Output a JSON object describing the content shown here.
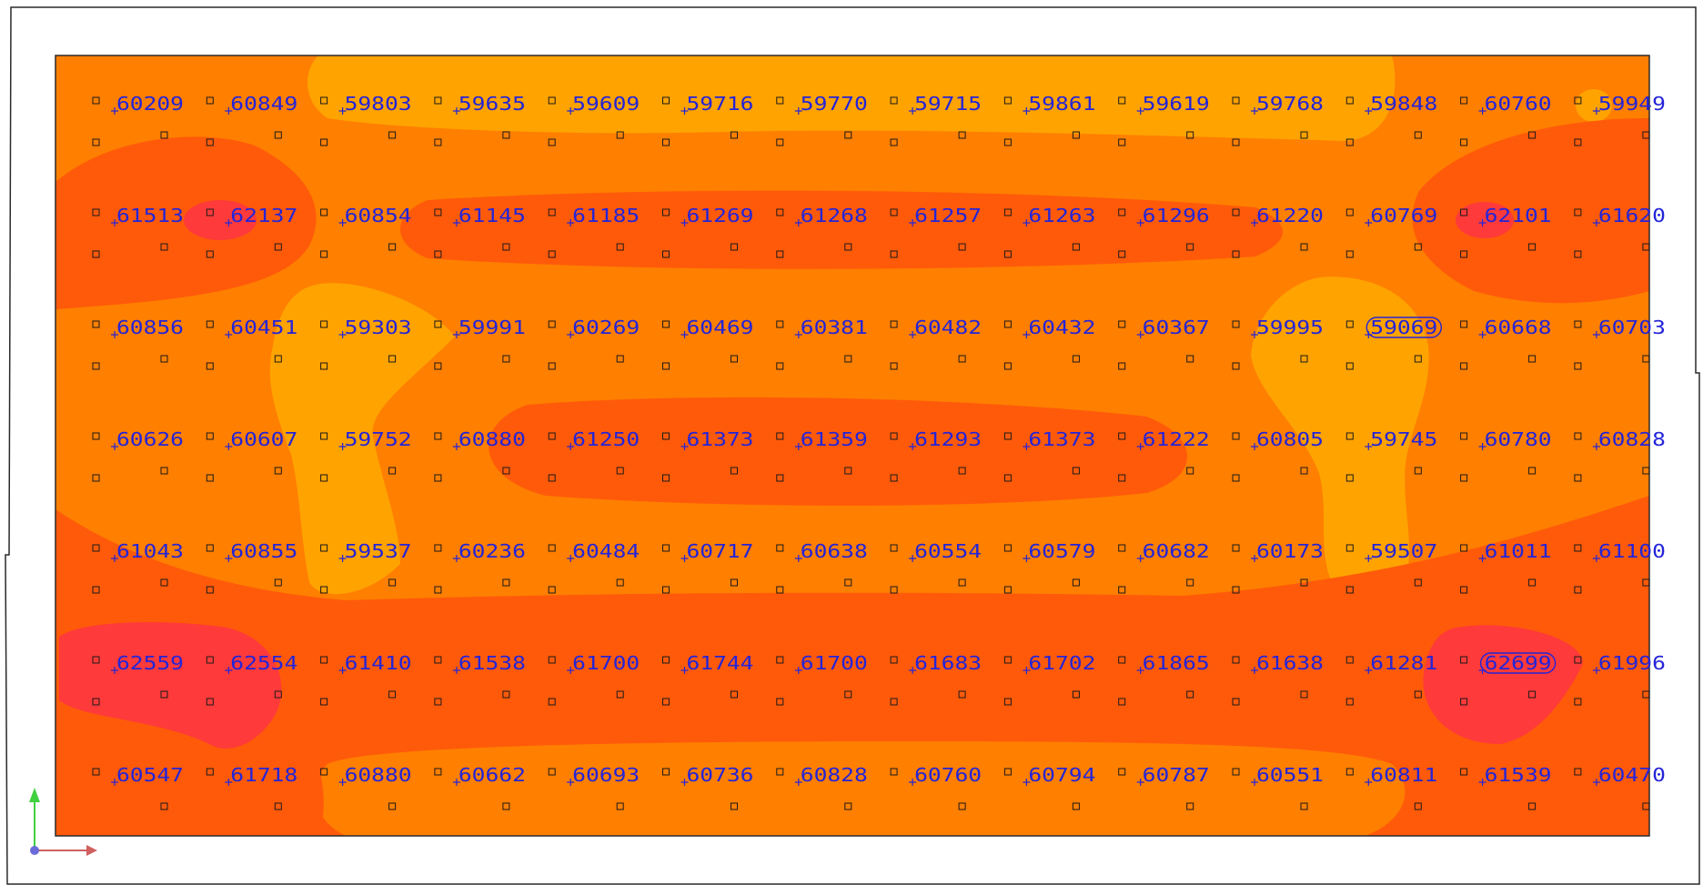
{
  "colors": {
    "background": "#ffffff",
    "frame": "#2a2a2a",
    "band_low": "#ffa300",
    "band_mid": "#ff7f00",
    "band_high": "#ff5a0a",
    "band_peak": "#ff3a3a",
    "label": "#2424d8",
    "marker": "#1a1a1a",
    "axis_x": "#d06060",
    "axis_y": "#40d040",
    "origin": "#6a6ad8"
  },
  "grid": {
    "rows": [
      [
        "60209",
        "60849",
        "59803",
        "59635",
        "59609",
        "59716",
        "59770",
        "59715",
        "59861",
        "59619",
        "59768",
        "59848",
        "60760",
        "59949"
      ],
      [
        "61513",
        "62137",
        "60854",
        "61145",
        "61185",
        "61269",
        "61268",
        "61257",
        "61263",
        "61296",
        "61220",
        "60769",
        "62101",
        "61620"
      ],
      [
        "60856",
        "60451",
        "59303",
        "59991",
        "60269",
        "60469",
        "60381",
        "60482",
        "60432",
        "60367",
        "59995",
        "59069",
        "60668",
        "60703"
      ],
      [
        "60626",
        "60607",
        "59752",
        "60880",
        "61250",
        "61373",
        "61359",
        "61293",
        "61373",
        "61222",
        "60805",
        "59745",
        "60780",
        "60828"
      ],
      [
        "61043",
        "60855",
        "59537",
        "60236",
        "60484",
        "60717",
        "60638",
        "60554",
        "60579",
        "60682",
        "60173",
        "59507",
        "61011",
        "61100"
      ],
      [
        "62559",
        "62554",
        "61410",
        "61538",
        "61700",
        "61744",
        "61700",
        "61683",
        "61702",
        "61865",
        "61638",
        "61281",
        "62699",
        "61996"
      ],
      [
        "60547",
        "61718",
        "60880",
        "60662",
        "60693",
        "60736",
        "60828",
        "60760",
        "60794",
        "60787",
        "60551",
        "60811",
        "61539",
        "60470"
      ]
    ],
    "highlighted": [
      "59069",
      "62699"
    ]
  },
  "axes": {
    "x_icon": "axis-x-arrow-icon",
    "y_icon": "axis-y-arrow-icon",
    "origin_icon": "origin-dot-icon"
  }
}
